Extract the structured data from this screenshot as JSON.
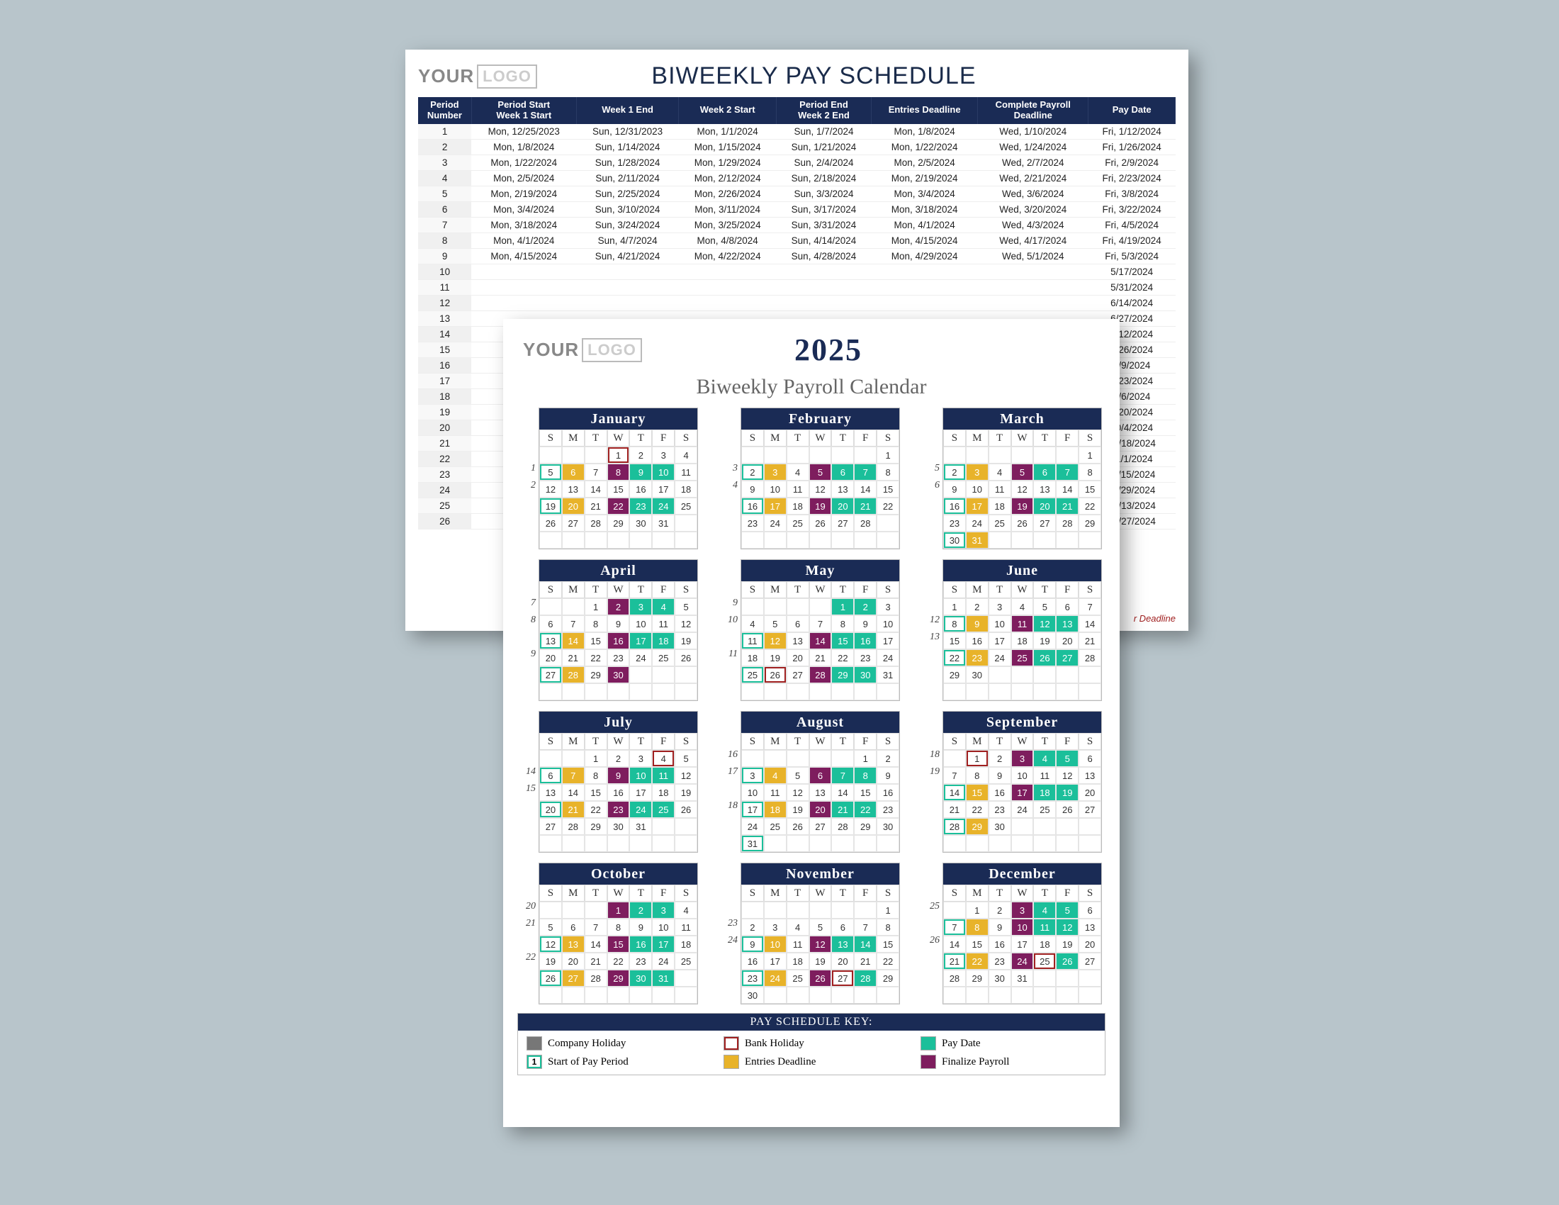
{
  "colors": {
    "navy": "#1a2b55",
    "teal": "#1bbf9a",
    "gold": "#e8b32a",
    "plum": "#7e1d5e",
    "gray": "#777777",
    "bank": "#a02020",
    "page_bg": "#b8c5cb"
  },
  "logo": {
    "your": "YOUR",
    "logo": "LOGO"
  },
  "schedule": {
    "title": "BIWEEKLY PAY SCHEDULE",
    "columns": [
      "Period\nNumber",
      "Period Start\nWeek 1 Start",
      "Week 1 End",
      "Week 2 Start",
      "Period End\nWeek 2 End",
      "Entries Deadline",
      "Complete Payroll\nDeadline",
      "Pay Date"
    ],
    "rows": [
      [
        "1",
        "Mon, 12/25/2023",
        "Sun, 12/31/2023",
        "Mon, 1/1/2024",
        "Sun, 1/7/2024",
        "Mon, 1/8/2024",
        "Wed, 1/10/2024",
        "Fri, 1/12/2024"
      ],
      [
        "2",
        "Mon, 1/8/2024",
        "Sun, 1/14/2024",
        "Mon, 1/15/2024",
        "Sun, 1/21/2024",
        "Mon, 1/22/2024",
        "Wed, 1/24/2024",
        "Fri, 1/26/2024"
      ],
      [
        "3",
        "Mon, 1/22/2024",
        "Sun, 1/28/2024",
        "Mon, 1/29/2024",
        "Sun, 2/4/2024",
        "Mon, 2/5/2024",
        "Wed, 2/7/2024",
        "Fri, 2/9/2024"
      ],
      [
        "4",
        "Mon, 2/5/2024",
        "Sun, 2/11/2024",
        "Mon, 2/12/2024",
        "Sun, 2/18/2024",
        "Mon, 2/19/2024",
        "Wed, 2/21/2024",
        "Fri, 2/23/2024"
      ],
      [
        "5",
        "Mon, 2/19/2024",
        "Sun, 2/25/2024",
        "Mon, 2/26/2024",
        "Sun, 3/3/2024",
        "Mon, 3/4/2024",
        "Wed, 3/6/2024",
        "Fri, 3/8/2024"
      ],
      [
        "6",
        "Mon, 3/4/2024",
        "Sun, 3/10/2024",
        "Mon, 3/11/2024",
        "Sun, 3/17/2024",
        "Mon, 3/18/2024",
        "Wed, 3/20/2024",
        "Fri, 3/22/2024"
      ],
      [
        "7",
        "Mon, 3/18/2024",
        "Sun, 3/24/2024",
        "Mon, 3/25/2024",
        "Sun, 3/31/2024",
        "Mon, 4/1/2024",
        "Wed, 4/3/2024",
        "Fri, 4/5/2024"
      ],
      [
        "8",
        "Mon, 4/1/2024",
        "Sun, 4/7/2024",
        "Mon, 4/8/2024",
        "Sun, 4/14/2024",
        "Mon, 4/15/2024",
        "Wed, 4/17/2024",
        "Fri, 4/19/2024"
      ],
      [
        "9",
        "Mon, 4/15/2024",
        "Sun, 4/21/2024",
        "Mon, 4/22/2024",
        "Sun, 4/28/2024",
        "Mon, 4/29/2024",
        "Wed, 5/1/2024",
        "Fri, 5/3/2024"
      ],
      [
        "10",
        "",
        "",
        "",
        "",
        "",
        "",
        "5/17/2024"
      ],
      [
        "11",
        "",
        "",
        "",
        "",
        "",
        "",
        "5/31/2024"
      ],
      [
        "12",
        "",
        "",
        "",
        "",
        "",
        "",
        "6/14/2024"
      ],
      [
        "13",
        "",
        "",
        "",
        "",
        "",
        "",
        "6/27/2024"
      ],
      [
        "14",
        "",
        "",
        "",
        "",
        "",
        "",
        "7/12/2024"
      ],
      [
        "15",
        "",
        "",
        "",
        "",
        "",
        "",
        "7/26/2024"
      ],
      [
        "16",
        "",
        "",
        "",
        "",
        "",
        "",
        "8/9/2024"
      ],
      [
        "17",
        "",
        "",
        "",
        "",
        "",
        "",
        "8/23/2024"
      ],
      [
        "18",
        "",
        "",
        "",
        "",
        "",
        "",
        "9/6/2024"
      ],
      [
        "19",
        "",
        "",
        "",
        "",
        "",
        "",
        "9/20/2024"
      ],
      [
        "20",
        "",
        "",
        "",
        "",
        "",
        "",
        "10/4/2024"
      ],
      [
        "21",
        "",
        "",
        "",
        "",
        "",
        "",
        "10/18/2024"
      ],
      [
        "22",
        "",
        "",
        "",
        "",
        "",
        "",
        "11/1/2024"
      ],
      [
        "23",
        "",
        "",
        "",
        "",
        "",
        "",
        "11/15/2024"
      ],
      [
        "24",
        "",
        "",
        "",
        "",
        "",
        "",
        "11/29/2024"
      ],
      [
        "25",
        "",
        "",
        "",
        "",
        "",
        "",
        "12/13/2024"
      ],
      [
        "26",
        "",
        "",
        "",
        "",
        "",
        "",
        "12/27/2024"
      ]
    ],
    "deadline_note": "r Deadline"
  },
  "calendar": {
    "year": "2025",
    "subtitle": "Biweekly Payroll Calendar",
    "dow": [
      "S",
      "M",
      "T",
      "W",
      "T",
      "F",
      "S"
    ],
    "legend_title": "PAY SCHEDULE KEY:",
    "legend_items": [
      {
        "cls": "c-company",
        "label": "Company Holiday",
        "text": ""
      },
      {
        "cls": "c-bank",
        "label": "Bank Holiday",
        "text": ""
      },
      {
        "cls": "c-pay",
        "label": "Pay Date",
        "text": ""
      },
      {
        "cls": "c-start",
        "label": "Start of Pay Period",
        "text": "1"
      },
      {
        "cls": "c-entries",
        "label": "Entries Deadline",
        "text": ""
      },
      {
        "cls": "c-final",
        "label": "Finalize Payroll",
        "text": ""
      }
    ],
    "months": [
      {
        "name": "January",
        "lead": 3,
        "days": 31,
        "periods": {
          "2": "1",
          "3": "2"
        },
        "marks": {
          "1": "c-bank",
          "5": "c-start",
          "6": "c-entries",
          "8": "c-final",
          "9": "c-pay",
          "10": "c-pay",
          "19": "c-start",
          "20": "c-entries",
          "22": "c-final",
          "23": "c-pay",
          "24": "c-pay"
        }
      },
      {
        "name": "February",
        "lead": 6,
        "days": 28,
        "periods": {
          "2": "3",
          "3": "4"
        },
        "marks": {
          "2": "c-start",
          "3": "c-entries",
          "5": "c-final",
          "6": "c-pay",
          "7": "c-pay",
          "16": "c-start",
          "17": "c-entries",
          "19": "c-final",
          "20": "c-pay",
          "21": "c-pay"
        }
      },
      {
        "name": "March",
        "lead": 6,
        "days": 31,
        "periods": {
          "2": "5",
          "3": "6"
        },
        "marks": {
          "2": "c-start",
          "3": "c-entries",
          "5": "c-final",
          "6": "c-pay",
          "7": "c-pay",
          "16": "c-start",
          "17": "c-entries",
          "19": "c-final",
          "20": "c-pay",
          "21": "c-pay",
          "30": "c-start",
          "31": "c-entries"
        }
      },
      {
        "name": "April",
        "lead": 2,
        "days": 30,
        "periods": {
          "1": "7",
          "2": "8",
          "4": "9"
        },
        "marks": {
          "2": "c-final",
          "3": "c-pay",
          "4": "c-pay",
          "13": "c-start",
          "14": "c-entries",
          "16": "c-final",
          "17": "c-pay",
          "18": "c-pay",
          "27": "c-start",
          "28": "c-entries",
          "30": "c-final"
        }
      },
      {
        "name": "May",
        "lead": 4,
        "days": 31,
        "periods": {
          "1": "9",
          "2": "10",
          "4": "11"
        },
        "marks": {
          "1": "c-pay",
          "2": "c-pay",
          "11": "c-start",
          "12": "c-entries",
          "14": "c-final",
          "15": "c-pay",
          "16": "c-pay",
          "25": "c-start",
          "26": "c-bank",
          "28": "c-final",
          "29": "c-pay",
          "30": "c-pay"
        }
      },
      {
        "name": "June",
        "lead": 0,
        "days": 30,
        "periods": {
          "2": "12",
          "3": "13"
        },
        "marks": {
          "8": "c-start",
          "9": "c-entries",
          "11": "c-final",
          "12": "c-pay",
          "13": "c-pay",
          "22": "c-start",
          "23": "c-entries",
          "25": "c-final",
          "26": "c-pay",
          "27": "c-pay"
        }
      },
      {
        "name": "July",
        "lead": 2,
        "days": 31,
        "periods": {
          "2": "14",
          "3": "15"
        },
        "marks": {
          "4": "c-bank",
          "6": "c-start",
          "7": "c-entries",
          "9": "c-final",
          "10": "c-pay",
          "11": "c-pay",
          "20": "c-start",
          "21": "c-entries",
          "23": "c-final",
          "24": "c-pay",
          "25": "c-pay"
        }
      },
      {
        "name": "August",
        "lead": 5,
        "days": 31,
        "periods": {
          "1": "16",
          "2": "17",
          "4": "18"
        },
        "marks": {
          "3": "c-start",
          "4": "c-entries",
          "6": "c-final",
          "7": "c-pay",
          "8": "c-pay",
          "17": "c-start",
          "18": "c-entries",
          "20": "c-final",
          "21": "c-pay",
          "22": "c-pay",
          "31": "c-start"
        }
      },
      {
        "name": "September",
        "lead": 1,
        "days": 30,
        "periods": {
          "1": "18",
          "2": "19"
        },
        "marks": {
          "1": "c-bank",
          "3": "c-final",
          "4": "c-pay",
          "5": "c-pay",
          "14": "c-start",
          "15": "c-entries",
          "17": "c-final",
          "18": "c-pay",
          "19": "c-pay",
          "28": "c-start",
          "29": "c-entries"
        }
      },
      {
        "name": "October",
        "lead": 3,
        "days": 31,
        "periods": {
          "1": "20",
          "2": "21",
          "4": "22"
        },
        "marks": {
          "1": "c-final",
          "2": "c-pay",
          "3": "c-pay",
          "12": "c-start",
          "13": "c-entries",
          "15": "c-final",
          "16": "c-pay",
          "17": "c-pay",
          "26": "c-start",
          "27": "c-entries",
          "29": "c-final",
          "30": "c-pay",
          "31": "c-pay"
        }
      },
      {
        "name": "November",
        "lead": 6,
        "days": 30,
        "periods": {
          "2": "23",
          "3": "24"
        },
        "marks": {
          "9": "c-start",
          "10": "c-entries",
          "12": "c-final",
          "13": "c-pay",
          "14": "c-pay",
          "23": "c-start",
          "24": "c-entries",
          "26": "c-final",
          "27": "c-bank",
          "28": "c-pay"
        }
      },
      {
        "name": "December",
        "lead": 1,
        "days": 31,
        "periods": {
          "1": "25",
          "3": "26"
        },
        "marks": {
          "3": "c-final",
          "4": "c-pay",
          "5": "c-pay",
          "7": "c-start",
          "8": "c-entries",
          "10": "c-final",
          "11": "c-pay",
          "12": "c-pay",
          "21": "c-start",
          "22": "c-entries",
          "24": "c-final",
          "25": "c-bank",
          "26": "c-pay"
        }
      }
    ]
  }
}
